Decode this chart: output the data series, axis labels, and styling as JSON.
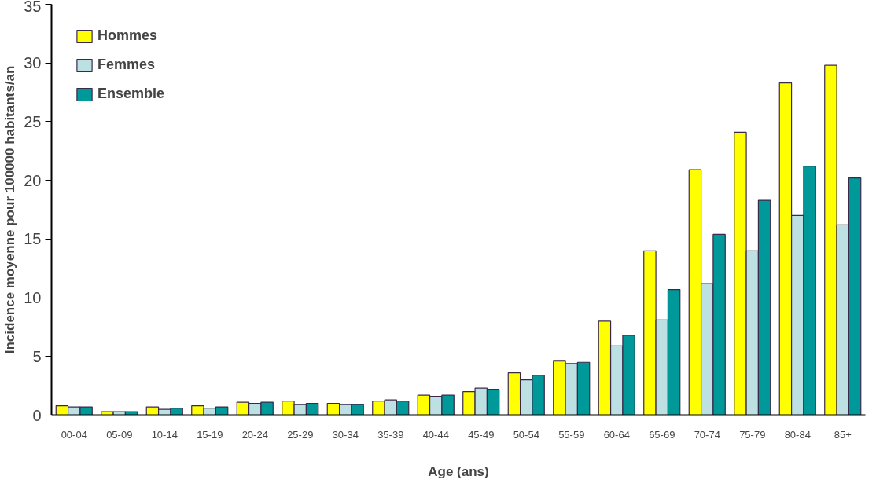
{
  "chart_data": {
    "type": "bar",
    "xlabel": "Age (ans)",
    "ylabel": "Incidence moyenne pour 100000 habitants/an",
    "categories": [
      "00-04",
      "05-09",
      "10-14",
      "15-19",
      "20-24",
      "25-29",
      "30-34",
      "35-39",
      "40-44",
      "45-49",
      "50-54",
      "55-59",
      "60-64",
      "65-69",
      "70-74",
      "75-79",
      "80-84",
      "85+"
    ],
    "series": [
      {
        "name": "Hommes",
        "color": "#ffff00",
        "values": [
          0.8,
          0.3,
          0.7,
          0.8,
          1.1,
          1.2,
          1.0,
          1.2,
          1.7,
          2.0,
          3.6,
          4.6,
          8.0,
          14.0,
          20.9,
          24.1,
          28.3,
          29.8
        ]
      },
      {
        "name": "Femmes",
        "color": "#bde0e3",
        "values": [
          0.7,
          0.3,
          0.5,
          0.6,
          1.0,
          0.9,
          0.9,
          1.3,
          1.6,
          2.3,
          3.0,
          4.4,
          5.9,
          8.1,
          11.2,
          14.0,
          17.0,
          16.2
        ]
      },
      {
        "name": "Ensemble",
        "color": "#009999",
        "values": [
          0.7,
          0.3,
          0.6,
          0.7,
          1.1,
          1.0,
          0.9,
          1.2,
          1.7,
          2.2,
          3.4,
          4.5,
          6.8,
          10.7,
          15.4,
          18.3,
          21.2,
          20.2
        ]
      }
    ],
    "ylim": [
      0,
      35
    ],
    "yticks": [
      0,
      5,
      10,
      15,
      20,
      25,
      30,
      35
    ],
    "grid": false,
    "legend": "top left"
  }
}
